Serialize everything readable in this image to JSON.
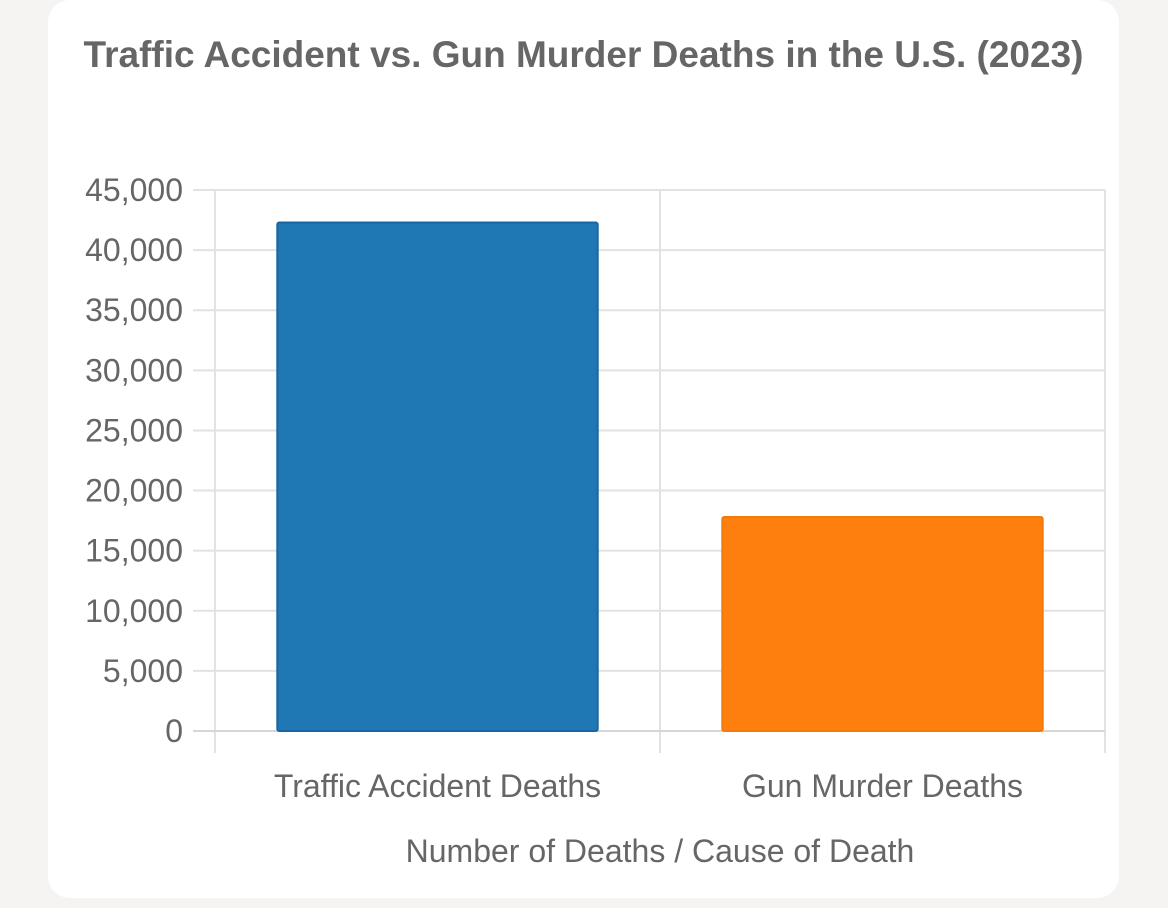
{
  "chart_data": {
    "type": "bar",
    "title": "Traffic Accident vs. Gun Murder Deaths in the U.S. (2023)",
    "xlabel": "Number of Deaths / Cause of Death",
    "ylabel": "",
    "categories": [
      "Traffic Accident Deaths",
      "Gun Murder Deaths"
    ],
    "values": [
      42300,
      17800
    ],
    "colors": [
      "#1f77b4",
      "#ff7f0e"
    ],
    "ylim": [
      0,
      45000
    ],
    "yticks": [
      0,
      5000,
      10000,
      15000,
      20000,
      25000,
      30000,
      35000,
      40000,
      45000
    ],
    "ytick_labels": [
      "0",
      "5,000",
      "10,000",
      "15,000",
      "20,000",
      "25,000",
      "30,000",
      "35,000",
      "40,000",
      "45,000"
    ],
    "grid": true,
    "legend": "none"
  }
}
